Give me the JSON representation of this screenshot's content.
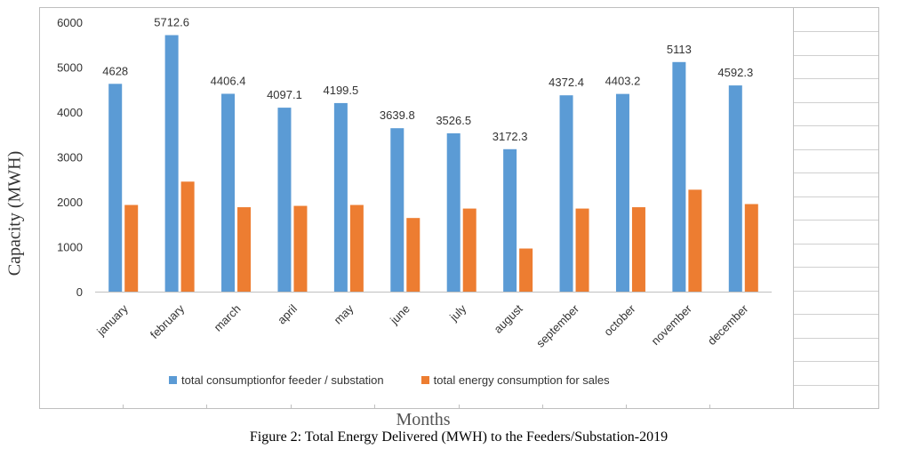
{
  "figure_caption": "Figure 2: Total Energy Delivered (MWH) to the Feeders/Substation-2019",
  "chart_data": {
    "type": "bar",
    "title": "",
    "xlabel": "Months",
    "ylabel": "Capacity (MWH)",
    "ylim": [
      0,
      6000
    ],
    "yticks": [
      0,
      1000,
      2000,
      3000,
      4000,
      5000,
      6000
    ],
    "categories": [
      "january",
      "february",
      "march",
      "april",
      "may",
      "june",
      "july",
      "august",
      "september",
      "october",
      "november",
      "december"
    ],
    "series": [
      {
        "name": "total consumptionfor feeder / substation",
        "color": "#5b9bd5",
        "values": [
          4628,
          5712.6,
          4406.4,
          4097.1,
          4199.5,
          3639.8,
          3526.5,
          3172.3,
          4372.4,
          4403.2,
          5113,
          4592.3
        ],
        "labels": [
          "4628",
          "5712.6",
          "4406.4",
          "4097.1",
          "4199.5",
          "3639.8",
          "3526.5",
          "3172.3",
          "4372.4",
          "4403.2",
          "5113",
          "4592.3"
        ]
      },
      {
        "name": "total energy consumption for sales",
        "color": "#ed7d31",
        "values": [
          1930,
          2450,
          1880,
          1910,
          1930,
          1640,
          1850,
          960,
          1850,
          1880,
          2270,
          1950
        ]
      }
    ],
    "legend_position": "bottom",
    "grid": false
  }
}
